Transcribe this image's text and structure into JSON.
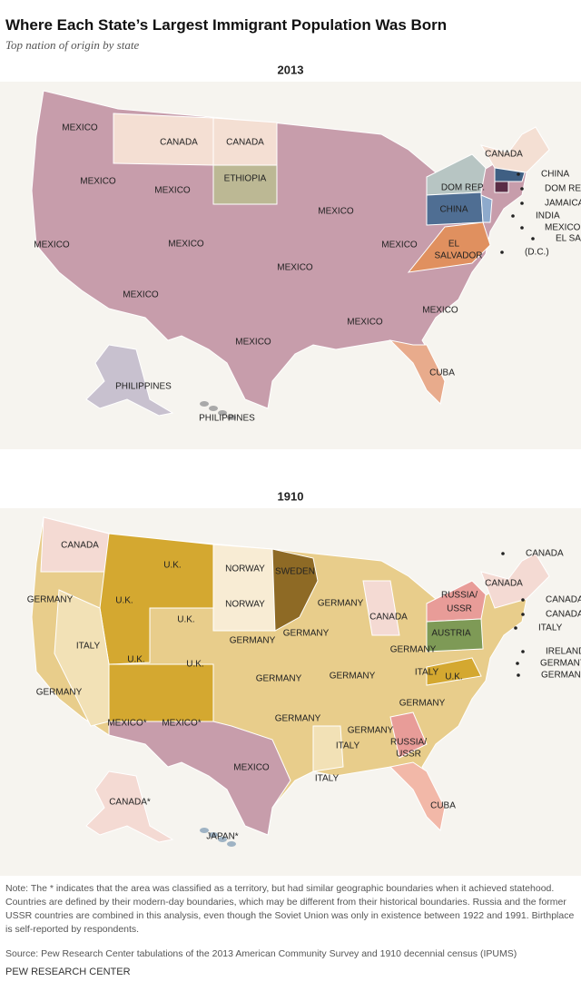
{
  "title": "Where Each State’s Largest Immigrant Population Was Born",
  "subtitle": "Top nation of origin by state",
  "maps": [
    {
      "year": "2013",
      "labels": [
        "MEXICO",
        "CANADA",
        "CANADA",
        "ETHIOPIA",
        "MEXICO",
        "MEXICO",
        "CANADA",
        "CHINA",
        "DOM REP.",
        "DOM REP.",
        "MEXICO",
        "CHINA",
        "JAMAICA",
        "INDIA",
        "MEXICO",
        "MEXICO",
        "MEXICO",
        "MEXICO",
        "EL SALVADOR",
        "EL",
        "SALVADOR",
        "(D.C.)",
        "MEXICO",
        "MEXICO",
        "MEXICO",
        "MEXICO",
        "MEXICO",
        "CUBA",
        "PHILIPPINES",
        "PHILIPPINES"
      ]
    },
    {
      "year": "1910",
      "labels": [
        "CANADA",
        "U.K.",
        "NORWAY",
        "SWEDEN",
        "CANADA",
        "GERMANY",
        "U.K.",
        "NORWAY",
        "GERMANY",
        "CANADA",
        "RUSSIA/",
        "USSR",
        "CANADA",
        "CANADA",
        "U.K.",
        "CANADA",
        "ITALY",
        "AUSTRIA",
        "GERMANY",
        "GERMANY",
        "IRELAND",
        "ITALY",
        "GERMANY",
        "GERMANY",
        "U.K.",
        "U.K.",
        "GERMANY",
        "GERMANY",
        "ITALY",
        "GERMANY (D.C.)",
        "U.K.",
        "GERMANY",
        "GERMANY",
        "GERMANY",
        "GERMANY",
        "MEXICO*",
        "MEXICO*",
        "ITALY",
        "RUSSIA/",
        "USSR",
        "MEXICO",
        "ITALY",
        "CANADA*",
        "CUBA",
        "JAPAN*"
      ]
    }
  ],
  "note": "Note: The * indicates that the area was classified as a territory, but had similar geographic boundaries when it achieved statehood. Countries are defined by their modern-day boundaries, which may be different from their historical boundaries. Russia and the former USSR countries are combined in this analysis, even though the Soviet Union was only in existence between 1922 and 1991. Birthplace is self-reported by respondents.",
  "source": "Source: Pew Research Center tabulations of the 2013 American Community Survey and 1910 decennial census (IPUMS)",
  "footer": "PEW RESEARCH CENTER"
}
